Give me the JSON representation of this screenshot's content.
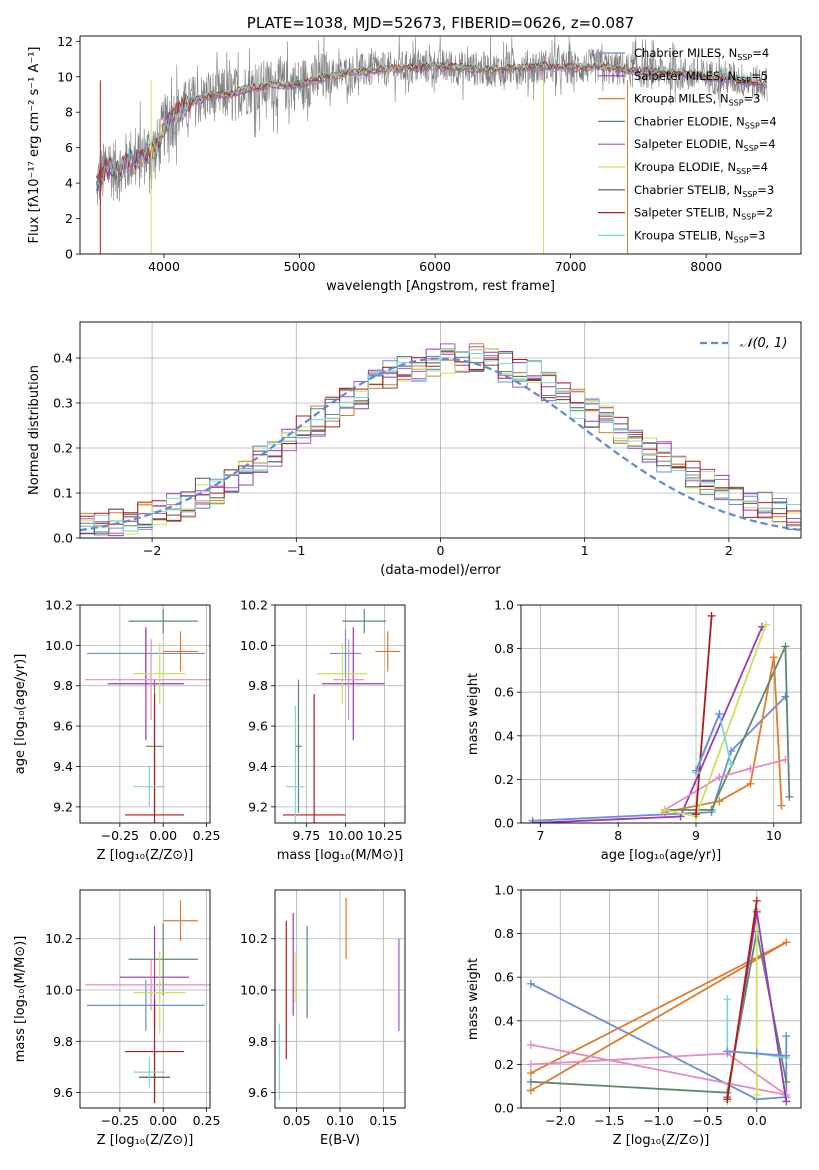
{
  "chart_data": [
    {
      "id": "spectrum",
      "type": "line",
      "title": "PLATE=1038, MJD=52673, FIBERID=0626, z=0.087",
      "xlabel": "wavelength [Angstrom, rest frame]",
      "ylabel": "Flux [fλ10⁻¹⁷ erg cm⁻² s⁻¹ A⁻¹]",
      "xlim": [
        3380,
        8700
      ],
      "ylim": [
        0,
        12.3
      ],
      "xticks": [
        4000,
        5000,
        6000,
        7000,
        8000
      ],
      "yticks": [
        0,
        2,
        4,
        6,
        8,
        10,
        12
      ],
      "data_color": "#808080",
      "data_x": [
        3500,
        3550,
        3600,
        3650,
        3700,
        3750,
        3800,
        3850,
        3900,
        3950,
        4000,
        4100,
        4200,
        4300,
        4400,
        4500,
        4600,
        4700,
        4800,
        4900,
        5000,
        5200,
        5400,
        5600,
        5800,
        6000,
        6200,
        6400,
        6600,
        6800,
        7000,
        7200,
        7400,
        7600,
        7800,
        8000,
        8200,
        8400
      ],
      "data_y": [
        3.8,
        4.5,
        5.0,
        4.6,
        4.9,
        5.4,
        5.2,
        5.6,
        5.8,
        5.9,
        7.2,
        8.0,
        8.6,
        8.8,
        9.0,
        9.0,
        9.3,
        9.4,
        9.6,
        9.5,
        9.6,
        10.0,
        10.3,
        10.4,
        10.5,
        10.6,
        10.5,
        10.4,
        10.5,
        10.6,
        10.5,
        10.6,
        10.4,
        10.3,
        10.2,
        10.0,
        9.9,
        9.6
      ],
      "legend": [
        {
          "name": "Chabrier MILES, N_SSP=4",
          "color": "#6a8fd8"
        },
        {
          "name": "Salpeter MILES, N_SSP=5",
          "color": "#9b39b8"
        },
        {
          "name": "Kroupa MILES, N_SSP=3",
          "color": "#e07b2b"
        },
        {
          "name": "Chabrier ELODIE, N_SSP=4",
          "color": "#5e8a6a"
        },
        {
          "name": "Salpeter ELODIE, N_SSP=4",
          "color": "#a855c6"
        },
        {
          "name": "Kroupa ELODIE, N_SSP=4",
          "color": "#cfe05a"
        },
        {
          "name": "Chabrier STELIB, N_SSP=3",
          "color": "#555555"
        },
        {
          "name": "Salpeter STELIB, N_SSP=2",
          "color": "#b01c1c"
        },
        {
          "name": "Kroupa STELIB, N_SSP=3",
          "color": "#7fd6d8"
        }
      ],
      "legend_position": "right",
      "legend_labels": {
        "pre": [
          "Chabrier MILES, N",
          "Salpeter MILES, N",
          "Kroupa MILES, N",
          "Chabrier ELODIE, N",
          "Salpeter ELODIE, N",
          "Kroupa ELODIE, N",
          "Chabrier STELIB, N",
          "Salpeter STELIB, N",
          "Kroupa STELIB, N"
        ],
        "sub": "SSP",
        "post": [
          "=4",
          "=5",
          "=3",
          "=4",
          "=4",
          "=4",
          "=3",
          "=2",
          "=3"
        ]
      }
    },
    {
      "id": "residuals",
      "type": "histogram",
      "xlabel": "(data-model)/error",
      "ylabel": "Normed distribution",
      "xlim": [
        -2.5,
        2.5
      ],
      "ylim": [
        0,
        0.48
      ],
      "xticks": [
        -2,
        -1,
        0,
        1,
        2
      ],
      "xtick_labels": [
        "−2",
        "−1",
        "0",
        "1",
        "2"
      ],
      "yticks": [
        0.0,
        0.1,
        0.2,
        0.3,
        0.4
      ],
      "ytick_labels": [
        "0.0",
        "0.1",
        "0.2",
        "0.3",
        "0.4"
      ],
      "reference_curve": {
        "name": "𝒩(0, 1)",
        "style": "dashed",
        "color": "#5b8bd6"
      },
      "legend_position": "top-right",
      "bin_width": 0.1,
      "series_colors": [
        "#6a8fd8",
        "#9b39b8",
        "#e07b2b",
        "#5e8a6a",
        "#a855c6",
        "#cfe05a",
        "#555555",
        "#b01c1c",
        "#7fd6d8"
      ],
      "envelope": [
        0.03,
        0.03,
        0.035,
        0.04,
        0.05,
        0.06,
        0.07,
        0.08,
        0.1,
        0.11,
        0.13,
        0.15,
        0.17,
        0.19,
        0.22,
        0.24,
        0.26,
        0.28,
        0.3,
        0.32,
        0.34,
        0.36,
        0.37,
        0.38,
        0.39,
        0.4,
        0.4,
        0.4,
        0.39,
        0.38,
        0.37,
        0.36,
        0.34,
        0.32,
        0.3,
        0.28,
        0.26,
        0.24,
        0.22,
        0.2,
        0.18,
        0.16,
        0.14,
        0.12,
        0.11,
        0.09,
        0.08,
        0.07,
        0.06,
        0.05
      ]
    },
    {
      "id": "Z-age",
      "type": "errorbar",
      "xlabel": "Z [log₁₀(Z/Z⊙)]",
      "ylabel": "age  [log₁₀(age/yr)]",
      "xlim": [
        -0.48,
        0.27
      ],
      "ylim": [
        9.12,
        10.2
      ],
      "xticks": [
        -0.25,
        0.0,
        0.25
      ],
      "xtick_labels": [
        "−0.25",
        "0.00",
        "0.25"
      ],
      "yticks": [
        9.2,
        9.4,
        9.6,
        9.8,
        10.0,
        10.2
      ],
      "ytick_labels": [
        "9.2",
        "9.4",
        "9.6",
        "9.8",
        "10.0",
        "10.2"
      ],
      "points": [
        {
          "x": -0.1,
          "y": 9.96,
          "xerr": 0.34,
          "yerr": 0.12,
          "color": "#6a8fd8"
        },
        {
          "x": -0.1,
          "y": 9.81,
          "xerr": 0.22,
          "yerr": 0.28,
          "color": "#9b39b8"
        },
        {
          "x": 0.1,
          "y": 9.97,
          "xerr": 0.1,
          "yerr": 0.1,
          "color": "#e07b2b"
        },
        {
          "x": 0.0,
          "y": 10.12,
          "xerr": 0.2,
          "yerr": 0.06,
          "color": "#5e8a6a"
        },
        {
          "x": -0.07,
          "y": 9.83,
          "xerr": 0.38,
          "yerr": 0.2,
          "color": "#e48ac7"
        },
        {
          "x": -0.02,
          "y": 9.86,
          "xerr": 0.15,
          "yerr": 0.15,
          "color": "#cfe05a"
        },
        {
          "x": -0.05,
          "y": 9.5,
          "xerr": 0.05,
          "yerr": 0.33,
          "color": "#5e8a6a"
        },
        {
          "x": -0.05,
          "y": 9.16,
          "xerr": 0.17,
          "yerr": 0.6,
          "color": "#b01c1c"
        },
        {
          "x": -0.08,
          "y": 9.3,
          "xerr": 0.09,
          "yerr": 0.1,
          "color": "#7fd6d8"
        }
      ]
    },
    {
      "id": "mass-age",
      "type": "errorbar",
      "xlabel": "mass [log₁₀(M/M⊙)]",
      "ylabel": "",
      "xlim": [
        9.55,
        10.38
      ],
      "ylim": [
        9.12,
        10.2
      ],
      "xticks": [
        9.75,
        10.0,
        10.25
      ],
      "xtick_labels": [
        "9.75",
        "10.00",
        "10.25"
      ],
      "yticks": [
        9.2,
        9.4,
        9.6,
        9.8,
        10.0,
        10.2
      ],
      "ytick_labels": [
        "9.2",
        "9.4",
        "9.6",
        "9.8",
        "10.0",
        "10.2"
      ],
      "points": [
        {
          "x": 10.0,
          "y": 9.96,
          "xerr": 0.1,
          "yerr": 0.12,
          "color": "#6a8fd8"
        },
        {
          "x": 10.05,
          "y": 9.81,
          "xerr": 0.2,
          "yerr": 0.28,
          "color": "#9b39b8"
        },
        {
          "x": 10.27,
          "y": 9.97,
          "xerr": 0.08,
          "yerr": 0.1,
          "color": "#e07b2b"
        },
        {
          "x": 10.12,
          "y": 10.12,
          "xerr": 0.14,
          "yerr": 0.06,
          "color": "#5e8a6a"
        },
        {
          "x": 10.02,
          "y": 9.83,
          "xerr": 0.1,
          "yerr": 0.2,
          "color": "#e48ac7"
        },
        {
          "x": 9.98,
          "y": 9.86,
          "xerr": 0.16,
          "yerr": 0.15,
          "color": "#cfe05a"
        },
        {
          "x": 9.7,
          "y": 9.5,
          "xerr": 0.02,
          "yerr": 0.33,
          "color": "#5e8a6a"
        },
        {
          "x": 9.8,
          "y": 9.16,
          "xerr": 0.2,
          "yerr": 0.6,
          "color": "#b01c1c"
        },
        {
          "x": 9.68,
          "y": 9.3,
          "xerr": 0.06,
          "yerr": 0.4,
          "color": "#7fd6d8"
        }
      ]
    },
    {
      "id": "age-weight",
      "type": "line",
      "xlabel": "age  [log₁₀(age/yr)]",
      "ylabel": "mass weight",
      "xlim": [
        6.75,
        10.35
      ],
      "ylim": [
        0,
        1
      ],
      "xticks": [
        7,
        8,
        9,
        10
      ],
      "xtick_labels": [
        "7",
        "8",
        "9",
        "10"
      ],
      "yticks": [
        0.0,
        0.2,
        0.4,
        0.6,
        0.8,
        1.0
      ],
      "ytick_labels": [
        "0.0",
        "0.2",
        "0.4",
        "0.6",
        "0.8",
        "1.0"
      ],
      "series": [
        {
          "color": "#6a8fd8",
          "x": [
            6.9,
            9.2,
            9.45,
            10.15
          ],
          "y": [
            0.01,
            0.05,
            0.33,
            0.58
          ]
        },
        {
          "color": "#9b39b8",
          "x": [
            6.9,
            8.8,
            9.85
          ],
          "y": [
            0.0,
            0.03,
            0.9
          ]
        },
        {
          "color": "#e07b2b",
          "x": [
            8.6,
            9.3,
            9.7,
            10.0,
            10.1
          ],
          "y": [
            0.05,
            0.1,
            0.18,
            0.76,
            0.08
          ]
        },
        {
          "color": "#5e8a6a",
          "x": [
            8.6,
            9.2,
            10.15,
            10.2
          ],
          "y": [
            0.06,
            0.06,
            0.81,
            0.12
          ]
        },
        {
          "color": "#e48ac7",
          "x": [
            8.6,
            9.3,
            9.7,
            10.15
          ],
          "y": [
            0.06,
            0.21,
            0.25,
            0.29
          ]
        },
        {
          "color": "#cfe05a",
          "x": [
            8.6,
            9.0,
            9.9
          ],
          "y": [
            0.06,
            0.03,
            0.91
          ]
        },
        {
          "color": "#b01c1c",
          "x": [
            9.0,
            9.2
          ],
          "y": [
            0.04,
            0.95
          ]
        },
        {
          "color": "#7fd6d8",
          "x": [
            9.0,
            9.3,
            9.45
          ],
          "y": [
            0.23,
            0.5,
            0.27
          ]
        },
        {
          "color": "#6a8fd8",
          "x": [
            9.0,
            9.3
          ],
          "y": [
            0.24,
            0.5
          ]
        }
      ]
    },
    {
      "id": "Z-mass",
      "type": "errorbar",
      "xlabel": "Z [log₁₀(Z/Z⊙)]",
      "ylabel": "mass [log₁₀(M/M⊙)]",
      "xlim": [
        -0.48,
        0.27
      ],
      "ylim": [
        9.54,
        10.39
      ],
      "xticks": [
        -0.25,
        0.0,
        0.25
      ],
      "xtick_labels": [
        "−0.25",
        "0.00",
        "0.25"
      ],
      "yticks": [
        9.6,
        9.8,
        10.0,
        10.2
      ],
      "ytick_labels": [
        "9.6",
        "9.8",
        "10.0",
        "10.2"
      ],
      "points": [
        {
          "x": -0.1,
          "y": 9.94,
          "xerr": 0.34,
          "yerr": 0.1,
          "color": "#6a8fd8"
        },
        {
          "x": -0.05,
          "y": 10.05,
          "xerr": 0.2,
          "yerr": 0.2,
          "color": "#9b39b8"
        },
        {
          "x": 0.1,
          "y": 10.27,
          "xerr": 0.1,
          "yerr": 0.08,
          "color": "#e07b2b"
        },
        {
          "x": 0.0,
          "y": 10.12,
          "xerr": 0.2,
          "yerr": 0.14,
          "color": "#5e8a6a"
        },
        {
          "x": -0.07,
          "y": 10.02,
          "xerr": 0.38,
          "yerr": 0.1,
          "color": "#e48ac7"
        },
        {
          "x": -0.02,
          "y": 9.99,
          "xerr": 0.15,
          "yerr": 0.16,
          "color": "#cfe05a"
        },
        {
          "x": -0.05,
          "y": 9.66,
          "xerr": 0.09,
          "yerr": 0.1,
          "color": "#555555"
        },
        {
          "x": -0.05,
          "y": 9.76,
          "xerr": 0.17,
          "yerr": 0.2,
          "color": "#b01c1c"
        },
        {
          "x": -0.08,
          "y": 9.68,
          "xerr": 0.09,
          "yerr": 0.06,
          "color": "#7fd6d8"
        }
      ]
    },
    {
      "id": "ebv-mass",
      "type": "errorbar",
      "xlabel": "E(B-V)",
      "ylabel": "",
      "xlim": [
        0.025,
        0.175
      ],
      "ylim": [
        9.54,
        10.39
      ],
      "xticks": [
        0.05,
        0.1,
        0.15
      ],
      "xtick_labels": [
        "0.05",
        "0.10",
        "0.15"
      ],
      "yticks": [
        9.6,
        9.8,
        10.0,
        10.2
      ],
      "ytick_labels": [
        "9.6",
        "9.8",
        "10.0",
        "10.2"
      ],
      "points": [
        {
          "x": 0.03,
          "y": 9.72,
          "yerr": 0.15,
          "color": "#7fd6d8"
        },
        {
          "x": 0.038,
          "y": 10.0,
          "yerr": 0.27,
          "color": "#b01c1c"
        },
        {
          "x": 0.046,
          "y": 10.1,
          "yerr": 0.2,
          "color": "#9b39b8"
        },
        {
          "x": 0.048,
          "y": 10.05,
          "yerr": 0.1,
          "color": "#cfe05a"
        },
        {
          "x": 0.062,
          "y": 10.07,
          "yerr": 0.18,
          "color": "#5e8a6a"
        },
        {
          "x": 0.107,
          "y": 10.24,
          "yerr": 0.12,
          "color": "#e07b2b"
        },
        {
          "x": 0.168,
          "y": 10.02,
          "yerr": 0.18,
          "color": "#a855c6"
        }
      ]
    },
    {
      "id": "Z-weight",
      "type": "line",
      "xlabel": "Z [log₁₀(Z/Z⊙)]",
      "ylabel": "mass weight",
      "xlim": [
        -2.4,
        0.45
      ],
      "ylim": [
        0,
        1
      ],
      "xticks": [
        -2.0,
        -1.5,
        -1.0,
        -0.5,
        0.0
      ],
      "xtick_labels": [
        "−2.0",
        "−1.5",
        "−1.0",
        "−0.5",
        "0.0"
      ],
      "yticks": [
        0.0,
        0.2,
        0.4,
        0.6,
        0.8,
        1.0
      ],
      "ytick_labels": [
        "0.0",
        "0.2",
        "0.4",
        "0.6",
        "0.8",
        "1.0"
      ],
      "series": [
        {
          "color": "#6a8fd8",
          "x": [
            -2.3,
            0.0,
            0.3,
            0.3
          ],
          "y": [
            0.57,
            0.04,
            0.05,
            0.33
          ]
        },
        {
          "color": "#e07b2b",
          "x": [
            -2.3,
            0.3,
            -2.3
          ],
          "y": [
            0.16,
            0.76,
            0.08
          ]
        },
        {
          "color": "#e48ac7",
          "x": [
            -2.3,
            -0.3,
            0.3,
            -2.3
          ],
          "y": [
            0.2,
            0.25,
            0.06,
            0.29
          ]
        },
        {
          "color": "#5e8a6a",
          "x": [
            -2.3,
            -0.3,
            0.0,
            0.3
          ],
          "y": [
            0.12,
            0.07,
            0.81,
            0.12
          ]
        },
        {
          "color": "#cfe05a",
          "x": [
            -0.3,
            0.0,
            0.0
          ],
          "y": [
            0.03,
            0.91,
            0.06
          ]
        },
        {
          "color": "#9b39b8",
          "x": [
            -0.3,
            0.0,
            0.3
          ],
          "y": [
            0.05,
            0.9,
            0.03
          ]
        },
        {
          "color": "#b01c1c",
          "x": [
            -0.3,
            0.0
          ],
          "y": [
            0.04,
            0.95
          ]
        },
        {
          "color": "#7fd6d8",
          "x": [
            -0.3,
            -0.3,
            0.0,
            0.3
          ],
          "y": [
            0.5,
            0.26,
            0.25,
            0.23
          ]
        },
        {
          "color": "#6a8fd8",
          "x": [
            -0.3,
            0.0,
            0.3
          ],
          "y": [
            0.26,
            0.25,
            0.24
          ]
        }
      ]
    }
  ]
}
